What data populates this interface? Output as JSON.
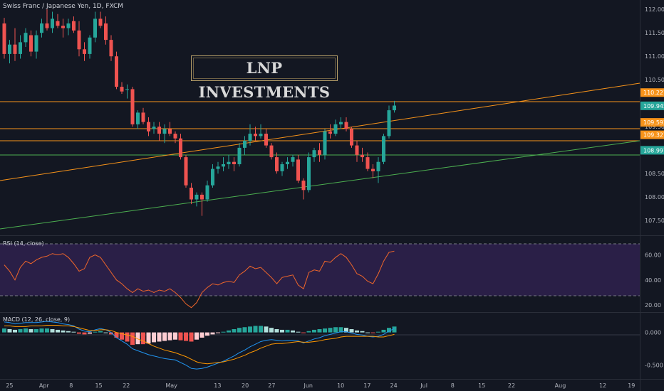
{
  "header": {
    "title": "Swiss Franc / Japanese Yen, 1D, FXCM"
  },
  "watermark": {
    "text": "LNP INVESTMENTS"
  },
  "rsi": {
    "label": "RSI (14, close)"
  },
  "macd": {
    "label": "MACD (12, 26, close, 9)"
  },
  "colors": {
    "bg": "#131722",
    "up": "#26a69a",
    "down": "#ef5350",
    "orange": "#f7931a",
    "green_line": "#4caf50",
    "rsi_fill": "#2a1f47",
    "macd": "#2196f3",
    "signal": "#ff9800"
  },
  "price_badges": [
    {
      "text": "110.227",
      "price": 110.227,
      "color": "#f7931a"
    },
    {
      "text": "109.945",
      "price": 109.945,
      "color": "#26a69a"
    },
    {
      "text": "109.592",
      "price": 109.592,
      "color": "#f7931a"
    },
    {
      "text": "109.327",
      "price": 109.327,
      "color": "#f7931a"
    },
    {
      "text": "108.997",
      "price": 108.997,
      "color": "#26a69a"
    }
  ],
  "chart_data": [
    {
      "type": "candlestick",
      "title": "Swiss Franc / Japanese Yen, 1D, FXCM",
      "ylim": [
        107.2,
        112.2
      ],
      "y_ticks": [
        "107.500",
        "108.000",
        "108.500",
        "109.000",
        "109.500",
        "110.500",
        "111.000",
        "111.500",
        "112.000"
      ],
      "x_ticks": [
        "25",
        "Apr",
        "8",
        "15",
        "22",
        "May",
        "13",
        "20",
        "27",
        "Jun",
        "10",
        "17",
        "24",
        "Jul",
        "8",
        "15",
        "22",
        "Aug",
        "12",
        "19"
      ],
      "candles": [
        [
          111.7,
          111.82,
          110.95,
          111.05
        ],
        [
          111.05,
          111.35,
          110.85,
          111.25
        ],
        [
          111.25,
          111.6,
          110.9,
          111.05
        ],
        [
          111.05,
          111.45,
          110.95,
          111.3
        ],
        [
          111.3,
          111.6,
          111.2,
          111.5
        ],
        [
          111.45,
          111.55,
          111.0,
          111.1
        ],
        [
          111.1,
          111.55,
          110.95,
          111.45
        ],
        [
          111.5,
          111.8,
          111.4,
          111.7
        ],
        [
          111.7,
          112.0,
          111.55,
          111.6
        ],
        [
          111.6,
          111.95,
          111.5,
          111.8
        ],
        [
          111.75,
          111.9,
          111.6,
          111.65
        ],
        [
          111.65,
          111.8,
          111.4,
          111.6
        ],
        [
          111.6,
          111.8,
          111.45,
          111.7
        ],
        [
          111.75,
          111.85,
          111.5,
          111.55
        ],
        [
          111.55,
          111.75,
          111.0,
          111.15
        ],
        [
          111.15,
          111.3,
          110.9,
          111.05
        ],
        [
          111.05,
          111.45,
          110.95,
          111.4
        ],
        [
          111.4,
          111.95,
          111.3,
          111.8
        ],
        [
          111.8,
          111.95,
          111.6,
          111.65
        ],
        [
          111.7,
          111.85,
          111.25,
          111.35
        ],
        [
          111.35,
          111.45,
          110.9,
          111.0
        ],
        [
          111.0,
          111.1,
          110.3,
          110.35
        ],
        [
          110.35,
          110.45,
          110.2,
          110.25
        ],
        [
          110.3,
          110.4,
          110.1,
          110.3
        ],
        [
          110.3,
          110.35,
          109.5,
          109.55
        ],
        [
          109.55,
          109.85,
          109.45,
          109.8
        ],
        [
          109.8,
          109.9,
          109.55,
          109.6
        ],
        [
          109.6,
          109.7,
          109.3,
          109.4
        ],
        [
          109.45,
          109.6,
          109.35,
          109.5
        ],
        [
          109.5,
          109.6,
          109.2,
          109.35
        ],
        [
          109.35,
          109.55,
          109.15,
          109.45
        ],
        [
          109.45,
          109.6,
          109.3,
          109.35
        ],
        [
          109.35,
          109.4,
          109.15,
          109.25
        ],
        [
          109.25,
          109.35,
          108.8,
          108.85
        ],
        [
          108.85,
          108.9,
          108.2,
          108.25
        ],
        [
          108.2,
          108.3,
          107.85,
          107.95
        ],
        [
          107.95,
          108.1,
          107.8,
          108.05
        ],
        [
          108.05,
          108.1,
          107.6,
          107.95
        ],
        [
          107.95,
          108.35,
          107.9,
          108.25
        ],
        [
          108.25,
          108.7,
          108.2,
          108.6
        ],
        [
          108.6,
          108.75,
          108.5,
          108.65
        ],
        [
          108.65,
          108.85,
          108.55,
          108.7
        ],
        [
          108.7,
          108.9,
          108.6,
          108.75
        ],
        [
          108.75,
          108.85,
          108.55,
          108.7
        ],
        [
          108.7,
          109.15,
          108.65,
          109.05
        ],
        [
          109.05,
          109.3,
          108.9,
          109.2
        ],
        [
          109.2,
          109.55,
          109.1,
          109.35
        ],
        [
          109.35,
          109.5,
          109.2,
          109.3
        ],
        [
          109.3,
          109.55,
          109.25,
          109.35
        ],
        [
          109.35,
          109.45,
          109.05,
          109.1
        ],
        [
          109.1,
          109.15,
          108.8,
          108.85
        ],
        [
          108.85,
          108.95,
          108.5,
          108.55
        ],
        [
          108.55,
          108.75,
          108.45,
          108.7
        ],
        [
          108.7,
          108.85,
          108.6,
          108.75
        ],
        [
          108.75,
          108.9,
          108.65,
          108.85
        ],
        [
          108.8,
          108.9,
          108.3,
          108.35
        ],
        [
          108.35,
          108.4,
          107.95,
          108.15
        ],
        [
          108.15,
          108.95,
          108.1,
          108.85
        ],
        [
          108.85,
          109.05,
          108.75,
          109.0
        ],
        [
          109.0,
          109.15,
          108.75,
          108.9
        ],
        [
          108.9,
          109.45,
          108.8,
          109.4
        ],
        [
          109.4,
          109.55,
          109.25,
          109.35
        ],
        [
          109.35,
          109.65,
          109.3,
          109.55
        ],
        [
          109.55,
          109.7,
          109.45,
          109.6
        ],
        [
          109.6,
          109.7,
          109.4,
          109.45
        ],
        [
          109.45,
          109.5,
          109.05,
          109.1
        ],
        [
          109.1,
          109.2,
          108.75,
          108.9
        ],
        [
          108.9,
          109.05,
          108.75,
          108.85
        ],
        [
          108.85,
          108.95,
          108.55,
          108.6
        ],
        [
          108.6,
          108.7,
          108.4,
          108.55
        ],
        [
          108.55,
          108.85,
          108.3,
          108.75
        ],
        [
          108.75,
          109.35,
          108.7,
          109.3
        ],
        [
          109.3,
          109.95,
          109.25,
          109.85
        ],
        [
          109.85,
          110.05,
          109.8,
          109.95
        ]
      ]
    },
    {
      "type": "line",
      "title": "RSI (14, close)",
      "ylim": [
        15,
        75
      ],
      "y_ticks": [
        "20.00",
        "40.00",
        "60.00"
      ],
      "bands": [
        30,
        70
      ],
      "series": [
        {
          "values": [
            52,
            47,
            40,
            50,
            55,
            53,
            56,
            58,
            59,
            61,
            60,
            61,
            58,
            53,
            47,
            49,
            58,
            60,
            58,
            52,
            46,
            40,
            37,
            33,
            30,
            33,
            31,
            32,
            30,
            32,
            31,
            33,
            30,
            26,
            21,
            18,
            22,
            30,
            34,
            37,
            36,
            38,
            39,
            38,
            44,
            47,
            51,
            49,
            50,
            46,
            42,
            37,
            42,
            43,
            44,
            36,
            33,
            46,
            48,
            47,
            55,
            54,
            58,
            61,
            58,
            52,
            45,
            43,
            39,
            37,
            45,
            55,
            62,
            63
          ]
        }
      ]
    },
    {
      "type": "bar",
      "title": "MACD (12, 26, close, 9)",
      "ylim": [
        -0.7,
        0.3
      ],
      "y_ticks": [
        "0.000",
        "-0.500"
      ],
      "histogram": [
        0.06,
        0.05,
        0.04,
        0.05,
        0.06,
        0.05,
        0.05,
        0.06,
        0.06,
        0.05,
        0.04,
        0.03,
        0.02,
        0.01,
        -0.02,
        -0.03,
        -0.02,
        0.01,
        0.02,
        0.0,
        -0.03,
        -0.08,
        -0.11,
        -0.14,
        -0.19,
        -0.18,
        -0.18,
        -0.17,
        -0.15,
        -0.14,
        -0.13,
        -0.12,
        -0.11,
        -0.12,
        -0.13,
        -0.14,
        -0.11,
        -0.08,
        -0.05,
        -0.03,
        -0.01,
        0.01,
        0.03,
        0.05,
        0.07,
        0.08,
        0.09,
        0.1,
        0.1,
        0.09,
        0.07,
        0.05,
        0.04,
        0.04,
        0.03,
        0.01,
        -0.01,
        0.02,
        0.04,
        0.05,
        0.06,
        0.07,
        0.08,
        0.08,
        0.07,
        0.05,
        0.03,
        0.02,
        0.0,
        -0.01,
        0.01,
        0.04,
        0.07,
        0.09
      ],
      "series": [
        {
          "values": [
            0.16,
            0.15,
            0.13,
            0.14,
            0.15,
            0.15,
            0.15,
            0.16,
            0.17,
            0.16,
            0.15,
            0.13,
            0.12,
            0.1,
            0.05,
            0.02,
            0.01,
            0.04,
            0.06,
            0.04,
            0.0,
            -0.08,
            -0.13,
            -0.18,
            -0.25,
            -0.28,
            -0.31,
            -0.34,
            -0.36,
            -0.38,
            -0.4,
            -0.41,
            -0.42,
            -0.46,
            -0.5,
            -0.55,
            -0.56,
            -0.55,
            -0.53,
            -0.5,
            -0.47,
            -0.44,
            -0.4,
            -0.36,
            -0.31,
            -0.27,
            -0.22,
            -0.18,
            -0.14,
            -0.12,
            -0.11,
            -0.12,
            -0.13,
            -0.12,
            -0.12,
            -0.13,
            -0.16,
            -0.13,
            -0.1,
            -0.08,
            -0.05,
            -0.03,
            -0.01,
            0.01,
            0.01,
            -0.01,
            -0.03,
            -0.04,
            -0.06,
            -0.07,
            -0.06,
            -0.03,
            0.02,
            0.06
          ]
        },
        {
          "values": [
            0.1,
            0.1,
            0.09,
            0.09,
            0.09,
            0.1,
            0.1,
            0.1,
            0.11,
            0.11,
            0.11,
            0.1,
            0.1,
            0.09,
            0.07,
            0.05,
            0.03,
            0.03,
            0.04,
            0.04,
            0.03,
            0.0,
            -0.02,
            -0.04,
            -0.06,
            -0.1,
            -0.13,
            -0.17,
            -0.21,
            -0.24,
            -0.27,
            -0.29,
            -0.31,
            -0.34,
            -0.37,
            -0.41,
            -0.45,
            -0.47,
            -0.48,
            -0.47,
            -0.46,
            -0.45,
            -0.43,
            -0.41,
            -0.38,
            -0.35,
            -0.31,
            -0.28,
            -0.24,
            -0.21,
            -0.18,
            -0.17,
            -0.17,
            -0.16,
            -0.15,
            -0.14,
            -0.15,
            -0.15,
            -0.14,
            -0.13,
            -0.11,
            -0.1,
            -0.09,
            -0.07,
            -0.06,
            -0.06,
            -0.06,
            -0.06,
            -0.06,
            -0.06,
            -0.07,
            -0.07,
            -0.05,
            -0.03
          ]
        }
      ]
    }
  ]
}
